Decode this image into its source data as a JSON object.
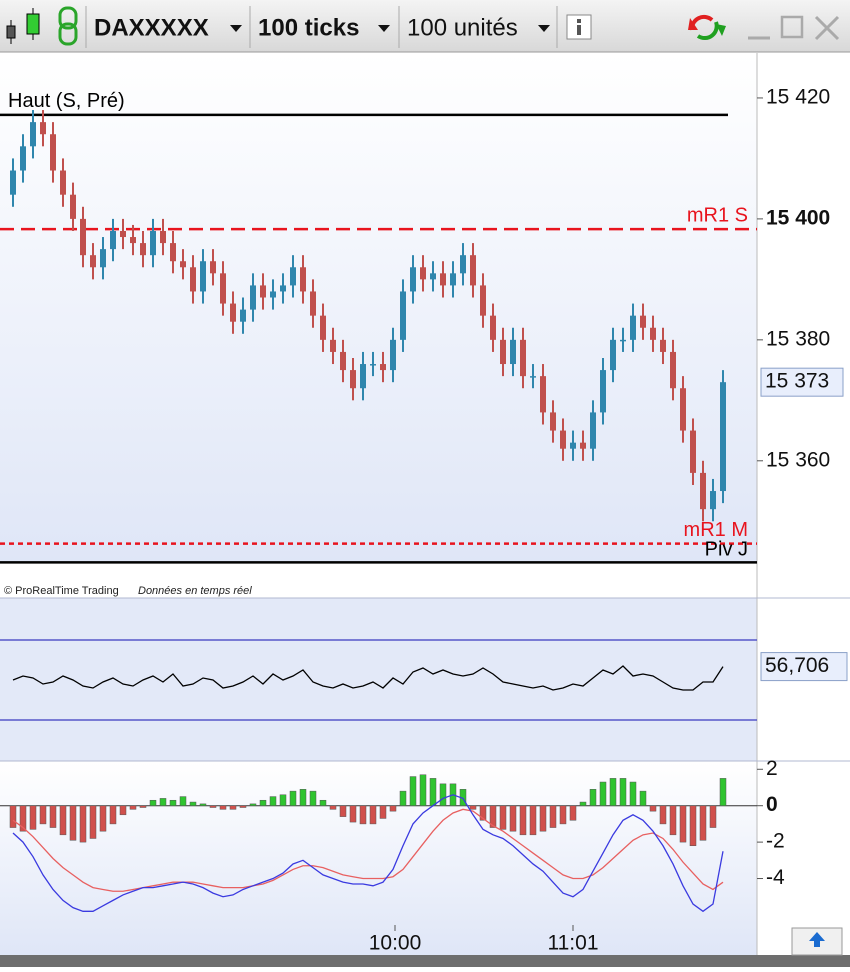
{
  "toolbar": {
    "symbol": "DAXXXXX",
    "interval": "100 ticks",
    "units": "100 unités"
  },
  "chart_data": [
    {
      "type": "candlestick",
      "open": [
        15404,
        15408,
        15412,
        15416,
        15414,
        15408,
        15404,
        15400,
        15394,
        15392,
        15395,
        15398,
        15397,
        15396,
        15394,
        15398,
        15396,
        15393,
        15392,
        15388,
        15393,
        15391,
        15386,
        15383,
        15385,
        15389,
        15387,
        15388,
        15389,
        15392,
        15388,
        15384,
        15380,
        15378,
        15375,
        15372,
        15376,
        15376,
        15375,
        15380,
        15388,
        15392,
        15390,
        15391,
        15389,
        15391,
        15394,
        15389,
        15384,
        15380,
        15376,
        15380,
        15374,
        15374,
        15368,
        15365,
        15362,
        15363,
        15362,
        15368,
        15375,
        15380,
        15380,
        15384,
        15382,
        15380,
        15378,
        15372,
        15365,
        15358,
        15352,
        15355
      ],
      "high": [
        15410,
        15414,
        15418,
        15418,
        15416,
        15410,
        15406,
        15402,
        15396,
        15397,
        15400,
        15400,
        15399,
        15398,
        15400,
        15400,
        15398,
        15395,
        15394,
        15395,
        15395,
        15393,
        15388,
        15387,
        15391,
        15391,
        15390,
        15391,
        15394,
        15394,
        15390,
        15386,
        15382,
        15380,
        15377,
        15378,
        15378,
        15378,
        15382,
        15390,
        15394,
        15394,
        15393,
        15393,
        15393,
        15396,
        15396,
        15391,
        15386,
        15382,
        15382,
        15382,
        15376,
        15376,
        15370,
        15367,
        15365,
        15365,
        15370,
        15377,
        15382,
        15382,
        15386,
        15386,
        15384,
        15382,
        15380,
        15374,
        15367,
        15360,
        15357,
        15375
      ],
      "low": [
        15402,
        15406,
        15410,
        15412,
        15406,
        15402,
        15398,
        15392,
        15390,
        15390,
        15393,
        15395,
        15394,
        15392,
        15392,
        15394,
        15391,
        15390,
        15386,
        15386,
        15389,
        15384,
        15381,
        15381,
        15383,
        15385,
        15385,
        15386,
        15387,
        15386,
        15382,
        15378,
        15376,
        15373,
        15370,
        15370,
        15374,
        15373,
        15373,
        15378,
        15386,
        15388,
        15388,
        15387,
        15387,
        15389,
        15387,
        15382,
        15378,
        15374,
        15374,
        15372,
        15372,
        15366,
        15363,
        15360,
        15360,
        15360,
        15360,
        15366,
        15373,
        15378,
        15378,
        15380,
        15378,
        15376,
        15370,
        15363,
        15356,
        15350,
        15350,
        15353
      ],
      "close": [
        15408,
        15412,
        15416,
        15414,
        15408,
        15404,
        15400,
        15394,
        15392,
        15395,
        15398,
        15397,
        15396,
        15394,
        15398,
        15396,
        15393,
        15392,
        15388,
        15393,
        15391,
        15386,
        15383,
        15385,
        15389,
        15387,
        15388,
        15389,
        15392,
        15388,
        15384,
        15380,
        15378,
        15375,
        15372,
        15376,
        15376,
        15375,
        15380,
        15388,
        15392,
        15390,
        15391,
        15389,
        15391,
        15394,
        15389,
        15384,
        15380,
        15376,
        15380,
        15374,
        15374,
        15368,
        15365,
        15362,
        15363,
        15362,
        15368,
        15375,
        15380,
        15380,
        15384,
        15382,
        15380,
        15378,
        15372,
        15365,
        15358,
        15352,
        15355,
        15373
      ],
      "ylim": [
        15343.1,
        15427.1
      ],
      "yticks": [
        {
          "value": 15420,
          "label": "15 420"
        },
        {
          "value": 15400,
          "label": "15 400"
        },
        {
          "value": 15380,
          "label": "15 380"
        },
        {
          "value": 15360,
          "label": "15 360"
        }
      ],
      "up_color": "#2f86ad",
      "down_color": "#c0504d",
      "levels": [
        {
          "label": "Haut (S, Pré)",
          "value": 15417.2,
          "color": "#000000",
          "style": "solid",
          "label_side": "left"
        },
        {
          "label": "mR1 S",
          "value": 15398.3,
          "color": "#e8141e",
          "style": "dashed",
          "label_side": "right"
        },
        {
          "label": "mR1 M",
          "value": 15346.3,
          "color": "#e8141e",
          "style": "dotted",
          "label_side": "right"
        },
        {
          "label": "Piv J",
          "value": 15343.2,
          "color": "#000000",
          "style": "solid",
          "label_side": "right-below"
        }
      ],
      "last_price": {
        "value": 15373,
        "label": "15 373"
      },
      "credit": "© ProRealTime Trading",
      "credit_note": "Données en temps réel"
    },
    {
      "type": "line",
      "values": [
        50,
        52,
        51,
        48,
        49,
        52,
        50,
        47,
        46,
        49,
        51,
        48,
        47,
        50,
        52,
        49,
        53,
        47,
        48,
        51,
        50,
        46,
        47,
        49,
        52,
        48,
        53,
        50,
        52,
        55,
        49,
        47,
        46,
        48,
        46,
        47,
        49,
        46,
        51,
        48,
        54,
        56,
        53,
        55,
        53,
        52,
        53,
        56,
        53,
        49,
        48,
        47,
        46,
        47,
        45,
        46,
        48,
        47,
        51,
        55,
        53,
        57,
        52,
        53,
        52,
        49,
        46,
        45,
        45,
        49,
        49,
        56.706
      ],
      "ylim": [
        10,
        90
      ],
      "bands": [
        70,
        30
      ],
      "color": "#000000",
      "band_color": "#3a3ac0",
      "last_value": {
        "value": 56.706,
        "label": "56,706"
      }
    },
    {
      "type": "macd",
      "histogram": [
        -1.2,
        -1.4,
        -1.3,
        -1,
        -1.2,
        -1.6,
        -1.9,
        -2,
        -1.8,
        -1.4,
        -1,
        -0.5,
        -0.2,
        -0.1,
        0.3,
        0.4,
        0.3,
        0.5,
        0.2,
        0.1,
        -0.1,
        -0.2,
        -0.2,
        -0.1,
        0.1,
        0.3,
        0.5,
        0.6,
        0.8,
        0.9,
        0.8,
        0.3,
        -0.2,
        -0.6,
        -0.9,
        -1,
        -1,
        -0.7,
        -0.3,
        0.8,
        1.6,
        1.7,
        1.5,
        1.2,
        1.2,
        0.9,
        -0.2,
        -0.8,
        -1.2,
        -1.3,
        -1.4,
        -1.6,
        -1.6,
        -1.4,
        -1.2,
        -1,
        -0.8,
        0.2,
        0.9,
        1.3,
        1.5,
        1.5,
        1.3,
        0.8,
        -0.3,
        -1,
        -1.6,
        -2,
        -2.2,
        -1.9,
        -1.2,
        1.5
      ],
      "macd": [
        -1.5,
        -2,
        -2.8,
        -3.8,
        -4.6,
        -5.2,
        -5.6,
        -5.8,
        -5.8,
        -5.5,
        -5.2,
        -4.9,
        -4.7,
        -4.5,
        -4.5,
        -4.4,
        -4.3,
        -4.2,
        -4.3,
        -4.5,
        -4.8,
        -5,
        -4.9,
        -4.6,
        -4.4,
        -4.2,
        -4,
        -3.7,
        -3.2,
        -3,
        -3.4,
        -3.8,
        -4,
        -4.2,
        -4.3,
        -4.3,
        -4.4,
        -4.2,
        -3.5,
        -2.2,
        -1,
        -0.4,
        0,
        0.4,
        0.6,
        0.4,
        -0.5,
        -1.3,
        -1.6,
        -1.8,
        -2.2,
        -2.7,
        -3.2,
        -3.6,
        -4.2,
        -4.8,
        -5,
        -4.6,
        -3.6,
        -2.6,
        -1.6,
        -0.8,
        -0.5,
        -0.8,
        -1.4,
        -2.2,
        -3.2,
        -4.4,
        -5.4,
        -5.8,
        -5.4,
        -2.5
      ],
      "signal": [
        -0.8,
        -1.2,
        -1.7,
        -2.3,
        -2.9,
        -3.4,
        -3.8,
        -4.2,
        -4.5,
        -4.6,
        -4.7,
        -4.7,
        -4.6,
        -4.5,
        -4.4,
        -4.3,
        -4.2,
        -4.2,
        -4.2,
        -4.3,
        -4.4,
        -4.5,
        -4.5,
        -4.5,
        -4.4,
        -4.3,
        -4.1,
        -3.8,
        -3.5,
        -3.3,
        -3.3,
        -3.4,
        -3.6,
        -3.8,
        -3.9,
        -4,
        -4,
        -4,
        -3.9,
        -3.5,
        -2.8,
        -2.1,
        -1.4,
        -0.8,
        -0.4,
        -0.2,
        -0.3,
        -0.7,
        -1.1,
        -1.4,
        -1.8,
        -2.2,
        -2.6,
        -3,
        -3.4,
        -3.8,
        -4,
        -4,
        -3.8,
        -3.4,
        -2.9,
        -2.4,
        -1.9,
        -1.6,
        -1.5,
        -1.8,
        -2.4,
        -3.1,
        -3.7,
        -4.3,
        -4.6,
        -4.2
      ],
      "ylim": [
        -8.2,
        2.4
      ],
      "yticks": [
        2,
        0,
        -2,
        -4
      ],
      "up_color": "#2fc42f",
      "down_color": "#d0504c",
      "macd_color": "#3a3ae0",
      "signal_color": "#e86060",
      "xticks": [
        {
          "value": 38.2,
          "label": "10:00"
        },
        {
          "value": 56,
          "label": "11:01"
        }
      ]
    }
  ]
}
